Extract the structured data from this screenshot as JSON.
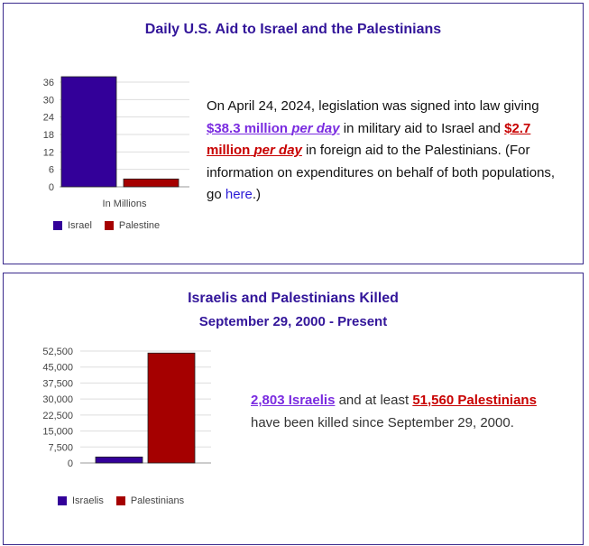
{
  "colors": {
    "israel": "#330099",
    "palestine": "#a50000",
    "title": "#33169a"
  },
  "aid": {
    "title": "Daily U.S. Aid to Israel and the Palestinians",
    "text_before": "On April 24, 2024, legislation was signed into law giving ",
    "israel_amount": "$38.3 million",
    "israel_per_day": "per day",
    "text_middle": " in military aid to Israel and ",
    "palestine_amount": "$2.7 million",
    "palestine_per_day": "per day",
    "text_after": " in foreign aid to the Palestinians. (For information on expenditures on behalf of both populations, go ",
    "link_text": "here",
    "text_end": ".)"
  },
  "killed": {
    "title": "Israelis and Palestinians Killed",
    "subtitle": "September 29, 2000 - Present",
    "israelis_link": "2,803 Israelis",
    "text_middle": " and at least ",
    "palestinians_link": "51,560 Palestinians",
    "text_after": " have been killed since September 29, 2000."
  },
  "chart_data": [
    {
      "type": "bar",
      "categories": [
        "In Millions"
      ],
      "series": [
        {
          "name": "Israel",
          "values": [
            38.3
          ]
        },
        {
          "name": "Palestine",
          "values": [
            2.7
          ]
        }
      ],
      "xlabel": "In Millions",
      "ylim": [
        0,
        36
      ],
      "yticks": [
        0,
        6,
        12,
        18,
        24,
        30,
        36
      ],
      "ytick_labels": [
        "0",
        "6",
        "12",
        "18",
        "24",
        "30",
        "36"
      ],
      "grid": true,
      "legend": "bottom"
    },
    {
      "type": "bar",
      "categories": [
        ""
      ],
      "series": [
        {
          "name": "Israelis",
          "values": [
            2803
          ]
        },
        {
          "name": "Palestinians",
          "values": [
            51560
          ]
        }
      ],
      "ylim": [
        0,
        52500
      ],
      "yticks": [
        0,
        7500,
        15000,
        22500,
        30000,
        37500,
        45000,
        52500
      ],
      "ytick_labels": [
        "0",
        "7,500",
        "15,000",
        "22,500",
        "30,000",
        "37,500",
        "45,000",
        "52,500"
      ],
      "grid": true,
      "legend": "bottom"
    }
  ]
}
